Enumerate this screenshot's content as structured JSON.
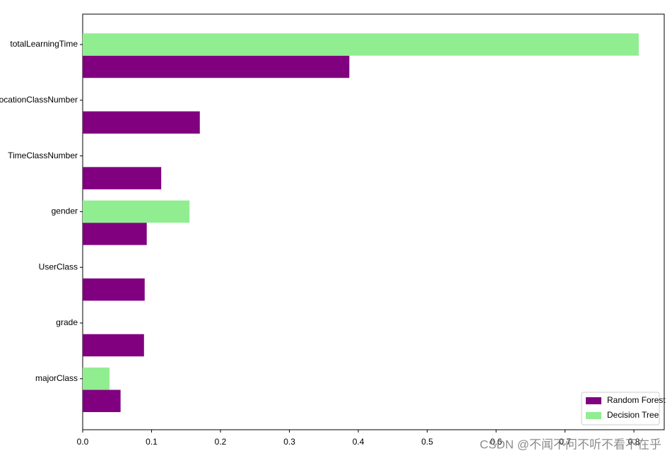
{
  "chart_data": {
    "type": "barh",
    "categories": [
      "totalLearningTime",
      "LocationClassNumber",
      "TimeClassNumber",
      "gender",
      "UserClass",
      "grade",
      "majorClass"
    ],
    "series": [
      {
        "name": "Random Forest",
        "color": "#800080",
        "values": [
          0.387,
          0.17,
          0.114,
          0.093,
          0.09,
          0.089,
          0.055
        ]
      },
      {
        "name": "Decision Tree",
        "color": "#90ee90",
        "values": [
          0.807,
          0,
          0,
          0.155,
          0,
          0,
          0.039
        ]
      }
    ],
    "xlim": [
      0,
      0.844
    ],
    "xticks": [
      {
        "value": 0,
        "label": "0.0"
      },
      0.1,
      0.2,
      0.3,
      0.4,
      0.5,
      0.6,
      0.7,
      0.8
    ],
    "legend": "lower right",
    "watermark": "CSDN @不闻不问不听不看不在乎"
  }
}
